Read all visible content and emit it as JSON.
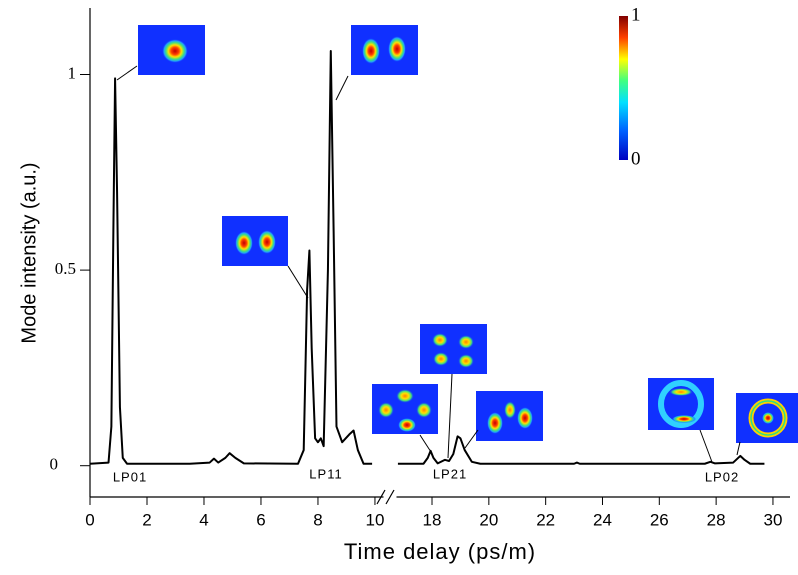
{
  "chart_data": {
    "type": "line",
    "y_label": "Mode intensity (a.u.)",
    "x_label": "Time delay (ps/m)",
    "ylim": [
      -0.08,
      1.17
    ],
    "yticks": [
      0,
      0.5,
      1
    ],
    "x_segments": [
      {
        "xlim": [
          0,
          10.3
        ],
        "xticks": [
          0,
          2,
          4,
          6,
          8,
          10
        ]
      },
      {
        "xlim": [
          16.75,
          30.6
        ],
        "xticks": [
          18,
          20,
          22,
          24,
          26,
          28,
          30
        ]
      }
    ],
    "color": "#000000",
    "series": [
      {
        "x": [
          0,
          0.65,
          0.75,
          0.82,
          0.88,
          0.95,
          1.05,
          1.15,
          1.3,
          3.5,
          4.2,
          4.35,
          4.5,
          4.75,
          4.9,
          5.1,
          5.4,
          7.3,
          7.5,
          7.62,
          7.7,
          7.78,
          7.9,
          8.0,
          8.1,
          8.2,
          8.35,
          8.45,
          8.55,
          8.65,
          8.85,
          9.1,
          9.25,
          9.4,
          9.6,
          9.9
        ],
        "values": [
          0.005,
          0.008,
          0.1,
          0.6,
          0.99,
          0.7,
          0.15,
          0.02,
          0.005,
          0.005,
          0.008,
          0.018,
          0.008,
          0.02,
          0.032,
          0.02,
          0.006,
          0.005,
          0.04,
          0.45,
          0.55,
          0.3,
          0.07,
          0.06,
          0.07,
          0.05,
          0.5,
          1.06,
          0.6,
          0.1,
          0.06,
          0.08,
          0.09,
          0.04,
          0.005,
          0.005
        ]
      },
      {
        "x": [
          16.8,
          17.7,
          17.85,
          17.95,
          18.05,
          18.2,
          18.45,
          18.6,
          18.75,
          18.9,
          19.0,
          19.15,
          19.4,
          19.7,
          23.0,
          23.1,
          23.2,
          27.6,
          27.8,
          27.95,
          28.6,
          28.85,
          29.0,
          29.2,
          29.7
        ],
        "values": [
          0.005,
          0.005,
          0.02,
          0.038,
          0.02,
          0.006,
          0.015,
          0.012,
          0.03,
          0.075,
          0.07,
          0.04,
          0.01,
          0.005,
          0.005,
          0.008,
          0.005,
          0.005,
          0.01,
          0.006,
          0.008,
          0.025,
          0.015,
          0.005,
          0.005
        ]
      }
    ],
    "mode_labels": [
      "LP01",
      "LP11",
      "LP21",
      "LP02"
    ],
    "colorbar_ticks": [
      0,
      1
    ]
  }
}
